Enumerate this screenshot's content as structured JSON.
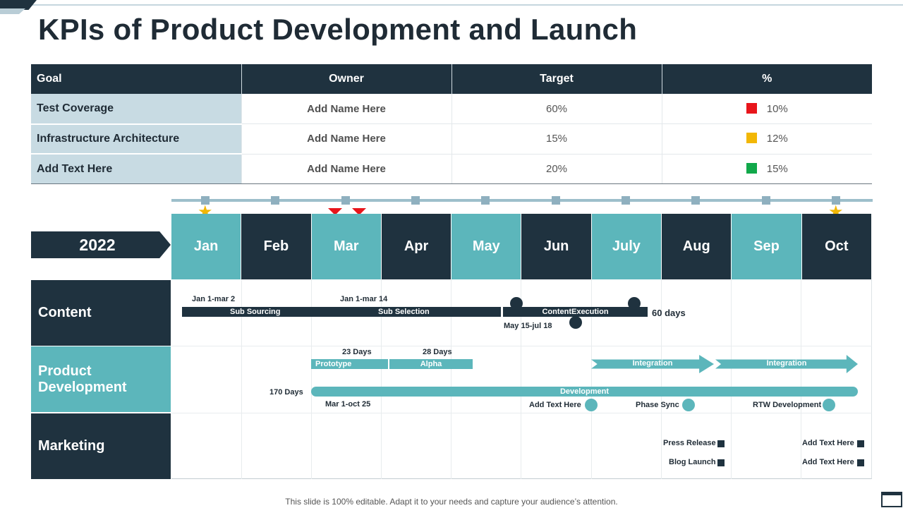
{
  "title": "KPIs of Product Development and Launch",
  "colors": {
    "dark": "#1f323f",
    "teal": "#5cb6bb",
    "light_blue": "#c8dbe3",
    "red": "#e8151b",
    "amber": "#f2b705",
    "green": "#11a84a"
  },
  "kpi_table": {
    "headers": [
      "Goal",
      "Owner",
      "Target",
      "%"
    ],
    "rows": [
      {
        "goal": "Test Coverage",
        "owner": "Add  Name Here",
        "target": "60%",
        "pct": "10%",
        "status_color": "#e8151b"
      },
      {
        "goal": "Infrastructure Architecture",
        "owner": "Add  Name Here",
        "target": "15%",
        "pct": "12%",
        "status_color": "#f2b705"
      },
      {
        "goal": "Add  Text Here",
        "owner": "Add  Name Here",
        "target": "20%",
        "pct": "15%",
        "status_color": "#11a84a"
      }
    ]
  },
  "timeline": {
    "year": "2022",
    "months": [
      "Jan",
      "Feb",
      "Mar",
      "Apr",
      "May",
      "Jun",
      "July",
      "Aug",
      "Sep",
      "Oct"
    ],
    "markers": {
      "stars": [
        "Jan",
        "Oct"
      ],
      "triangles": [
        "Mar"
      ]
    }
  },
  "categories": [
    "Content",
    "Product Development",
    "Marketing"
  ],
  "content_row": {
    "label_jan": "Jan 1-mar 2",
    "label_mar": "Jan 1-mar 14",
    "bar_sourcing": "Sub Sourcing",
    "bar_selection": "Sub Selection",
    "bar_execution": "ContentExecution",
    "days": "60 days",
    "range": "May 15-jul 18"
  },
  "product_row": {
    "days_prototype": "23 Days",
    "days_alpha": "28 Days",
    "prototype": "Prototype",
    "alpha": "Alpha",
    "integration_1": "Integration",
    "integration_2": "Integration",
    "days_total": "170 Days",
    "development": "Development",
    "range": "Mar 1-oct 25",
    "milestone_1": "Add Text Here",
    "milestone_2": "Phase Sync",
    "milestone_3": "RTW Development"
  },
  "marketing_row": {
    "press": "Press Release",
    "blog": "Blog Launch",
    "text_1": "Add Text Here",
    "text_2": "Add Text Here"
  },
  "footer": "This slide is 100% editable. Adapt it to your needs and capture your audience’s attention."
}
